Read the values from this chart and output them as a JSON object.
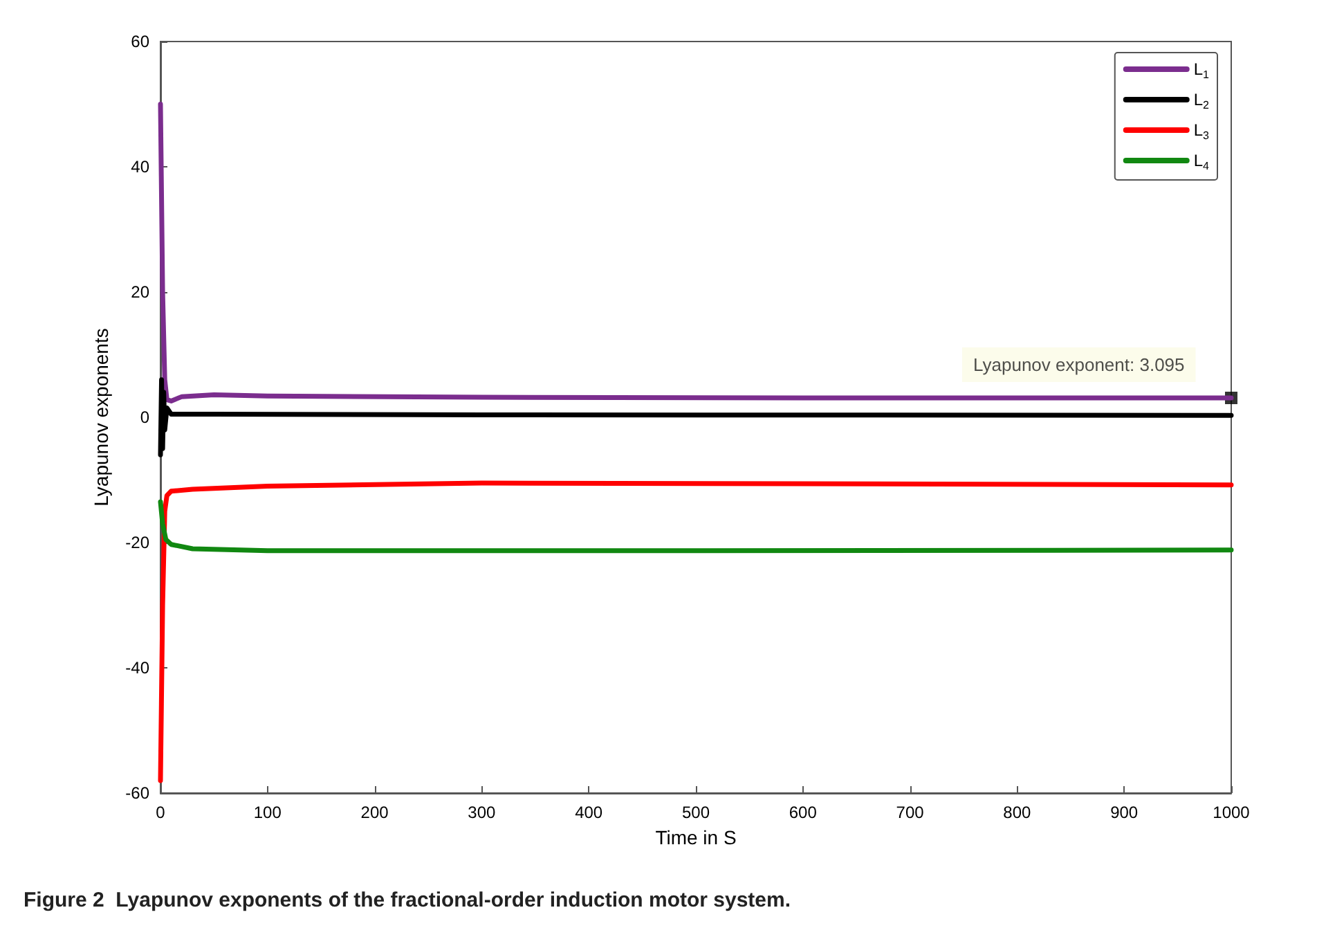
{
  "chart_data": {
    "type": "line",
    "title": "Figure 2  Lyapunov exponents of the fractional-order induction motor system.",
    "xlabel": "Time in S",
    "ylabel": "Lyapunov exponents",
    "xlim": [
      0,
      1000
    ],
    "xticks": [
      0,
      100,
      200,
      300,
      400,
      500,
      600,
      700,
      800,
      900,
      1000
    ],
    "ylim": [
      -60,
      60
    ],
    "yticks": [
      -60,
      -40,
      -20,
      0,
      20,
      40,
      60
    ],
    "grid": false,
    "legend": "top right",
    "marker": "none",
    "line_style": "solid",
    "annotations": [
      {
        "text": "Lyapunov exponent: 3.095",
        "x": 1000,
        "y": 3.095
      }
    ],
    "series": [
      {
        "name": "L$_{1}$",
        "color": "#7b2d8e",
        "x": [
          0,
          2,
          4,
          6,
          10,
          20,
          50,
          100,
          300,
          600,
          1000
        ],
        "values": [
          50,
          20,
          6,
          2.8,
          2.6,
          3.3,
          3.6,
          3.4,
          3.2,
          3.1,
          3.095
        ]
      },
      {
        "name": "L$_{2}$",
        "color": "#000000",
        "x": [
          0,
          1,
          2,
          3,
          4,
          6,
          10,
          50,
          300,
          1000
        ],
        "values": [
          -6,
          6,
          -5,
          4,
          -2,
          1.5,
          0.5,
          0.5,
          0.4,
          0.3
        ]
      },
      {
        "name": "L$_{3}$",
        "color": "#ff0000",
        "x": [
          0,
          2,
          4,
          6,
          10,
          30,
          100,
          300,
          600,
          1000
        ],
        "values": [
          -58,
          -30,
          -15,
          -12.5,
          -11.8,
          -11.5,
          -11,
          -10.5,
          -10.6,
          -10.8
        ]
      },
      {
        "name": "L$_{4}$",
        "color": "#118811",
        "x": [
          0,
          2,
          5,
          10,
          30,
          100,
          500,
          1000
        ],
        "values": [
          -13.5,
          -17,
          -19.5,
          -20.3,
          -21,
          -21.3,
          -21.3,
          -21.2
        ]
      }
    ]
  }
}
